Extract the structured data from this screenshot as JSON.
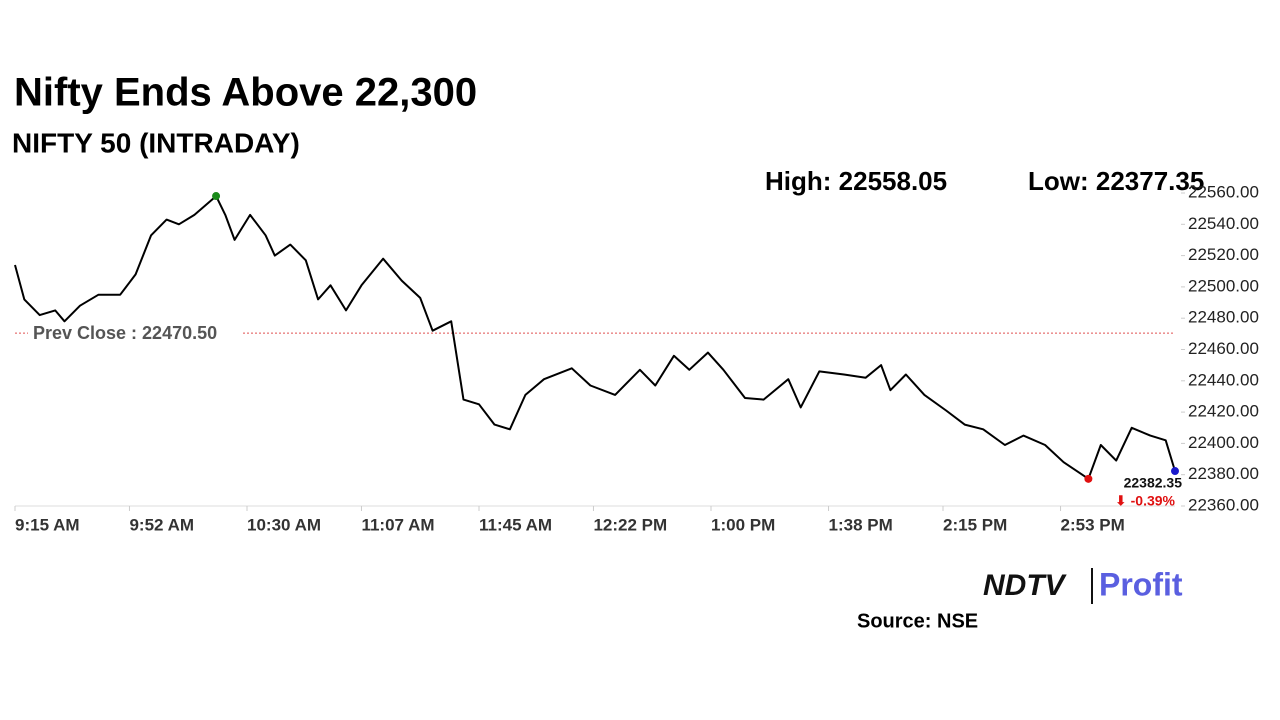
{
  "chart_data": {
    "type": "line",
    "title": "Nifty Ends Above 22,300",
    "subtitle": "NIFTY 50 (INTRADAY)",
    "high_label": "High: 22558.05",
    "low_label": "Low: 22377.35",
    "x": [
      "9:15 AM",
      "9:18 AM",
      "9:23 AM",
      "9:28 AM",
      "9:31 AM",
      "9:36 AM",
      "9:42 AM",
      "9:49 AM",
      "9:54 AM",
      "9:59 AM",
      "10:04 AM",
      "10:08 AM",
      "10:13 AM",
      "10:20 AM",
      "10:23 AM",
      "10:26 AM",
      "10:31 AM",
      "10:36 AM",
      "10:39 AM",
      "10:44 AM",
      "10:49 AM",
      "10:53 AM",
      "10:57 AM",
      "11:02 AM",
      "11:07 AM",
      "11:14 AM",
      "11:20 AM",
      "11:26 AM",
      "11:30 AM",
      "11:36 AM",
      "11:40 AM",
      "11:45 AM",
      "11:50 AM",
      "11:55 AM",
      "12:00 PM",
      "12:06 PM",
      "12:15 PM",
      "12:21 PM",
      "12:29 PM",
      "12:37 PM",
      "12:42 PM",
      "12:48 PM",
      "12:53 PM",
      "12:59 PM",
      "1:04 PM",
      "1:11 PM",
      "1:17 PM",
      "1:25 PM",
      "1:29 PM",
      "1:35 PM",
      "1:43 PM",
      "1:50 PM",
      "1:55 PM",
      "1:58 PM",
      "2:03 PM",
      "2:09 PM",
      "2:16 PM",
      "2:22 PM",
      "2:28 PM",
      "2:35 PM",
      "2:41 PM",
      "2:48 PM",
      "2:54 PM",
      "3:02 PM",
      "3:06 PM",
      "3:11 PM",
      "3:16 PM",
      "3:22 PM",
      "3:27 PM",
      "3:30 PM"
    ],
    "series": [
      {
        "name": "NIFTY 50",
        "color": "#000000",
        "values": [
          22514,
          22492,
          22482,
          22485,
          22478,
          22488,
          22495,
          22495,
          22508,
          22533,
          22543,
          22540,
          22546,
          22558.05,
          22546,
          22530,
          22546,
          22533,
          22520,
          22527,
          22517,
          22492,
          22501,
          22485,
          22501,
          22518,
          22504,
          22493,
          22472,
          22478,
          22428,
          22425,
          22412,
          22409,
          22431,
          22441,
          22448,
          22437,
          22431,
          22447,
          22437,
          22456,
          22447,
          22458,
          22447,
          22429,
          22428,
          22441,
          22423,
          22446,
          22444,
          22442,
          22450,
          22434,
          22444,
          22431,
          22421,
          22412,
          22409,
          22399,
          22405,
          22399,
          22388,
          22377.35,
          22399,
          22389,
          22410,
          22405,
          22402,
          22382.35
        ]
      }
    ],
    "high_index": 13,
    "high_color": "#1a8a1a",
    "low_index": 63,
    "low_color": "#e01010",
    "last_color": "#1a1acc",
    "last_label": "22382.35",
    "change_label": "⬇ -0.39%",
    "change_color": "#e01010",
    "prev_close": {
      "value": 22470.5,
      "label": "Prev Close : 22470.50"
    },
    "prev_close_color": "#e05050",
    "ylim": [
      22360,
      22560
    ],
    "yticks": [
      {
        "value": 22360,
        "label": "22360.00"
      },
      {
        "value": 22380,
        "label": "22380.00"
      },
      {
        "value": 22400,
        "label": "22400.00"
      },
      {
        "value": 22420,
        "label": "22420.00"
      },
      {
        "value": 22440,
        "label": "22440.00"
      },
      {
        "value": 22460,
        "label": "22460.00"
      },
      {
        "value": 22480,
        "label": "22480.00"
      },
      {
        "value": 22500,
        "label": "22500.00"
      },
      {
        "value": 22520,
        "label": "22520.00"
      },
      {
        "value": 22540,
        "label": "22540.00"
      },
      {
        "value": 22560,
        "label": "22560.00"
      }
    ],
    "xticks": [
      "9:15 AM",
      "9:52 AM",
      "10:30 AM",
      "11:07 AM",
      "11:45 AM",
      "12:22 PM",
      "1:00 PM",
      "1:38 PM",
      "2:15 PM",
      "2:53 PM"
    ],
    "brand": "NDTV",
    "product": "Profit",
    "source": "Source: NSE"
  }
}
